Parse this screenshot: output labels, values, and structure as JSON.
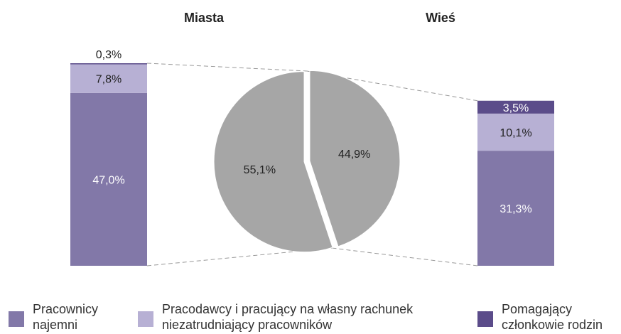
{
  "chart_data": {
    "type": "pie",
    "titles": {
      "left": "Miasta",
      "right": "Wieś"
    },
    "colors": {
      "hired": "#8278a8",
      "employers": "#b7b0d4",
      "family": "#5b4c8a",
      "pie": "#a6a6a6",
      "connector": "#999999"
    },
    "pie": {
      "slices": [
        {
          "label": "55,1%",
          "value": 55.1,
          "target": "left"
        },
        {
          "label": "44,9%",
          "value": 44.9,
          "target": "right"
        }
      ]
    },
    "left_bar": {
      "segments": [
        {
          "key": "hired",
          "value": 47.0,
          "label": "47,0%"
        },
        {
          "key": "employers",
          "value": 7.8,
          "label": "7,8%"
        },
        {
          "key": "family",
          "value": 0.3,
          "label": "0,3%"
        }
      ]
    },
    "right_bar": {
      "segments": [
        {
          "key": "hired",
          "value": 31.3,
          "label": "31,3%"
        },
        {
          "key": "employers",
          "value": 10.1,
          "label": "10,1%"
        },
        {
          "key": "family",
          "value": 3.5,
          "label": "3,5%"
        }
      ]
    },
    "legend": [
      {
        "key": "hired",
        "label": "Pracownicy\nnajemni"
      },
      {
        "key": "employers",
        "label": "Pracodawcy i pracujący na własny rachunek\nniezatrudniający pracowników"
      },
      {
        "key": "family",
        "label": "Pomagający\nczłonkowie rodzin"
      }
    ]
  }
}
